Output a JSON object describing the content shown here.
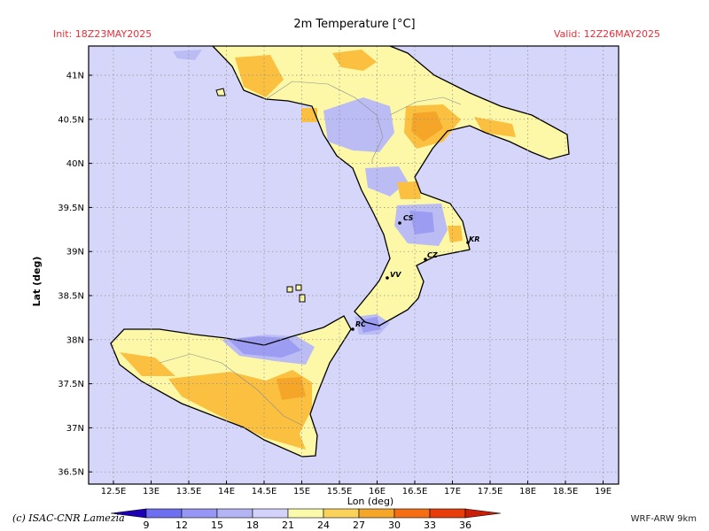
{
  "header": {
    "title": "2m Temperature [°C]",
    "init": "Init: 18Z23MAY2025",
    "valid": "Valid: 12Z26MAY2025"
  },
  "footer": {
    "credit": "(c) ISAC-CNR Lamezia",
    "model": "WRF-ARW 9km"
  },
  "axes": {
    "xlabel": "Lon (deg)",
    "ylabel": "Lat (deg)",
    "lon_ticks": [
      "12.5E",
      "13E",
      "13.5E",
      "14E",
      "14.5E",
      "15E",
      "15.5E",
      "16E",
      "16.5E",
      "17E",
      "17.5E",
      "18E",
      "18.5E",
      "19E"
    ],
    "lat_ticks": [
      "41N",
      "40.5N",
      "40N",
      "39.5N",
      "39N",
      "38.5N",
      "38N",
      "37.5N",
      "37N",
      "36.5N"
    ]
  },
  "stations": [
    "CS",
    "KR",
    "CZ",
    "VV",
    "RC"
  ],
  "colorbar": {
    "labels": [
      "9",
      "12",
      "15",
      "18",
      "21",
      "24",
      "27",
      "30",
      "33",
      "36"
    ],
    "colors": [
      "#1e00b4",
      "#6e6ef0",
      "#9696f5",
      "#b4b4f5",
      "#d2d2fa",
      "#fafaaa",
      "#fad25a",
      "#f5a528",
      "#f56e14",
      "#e83c0a",
      "#c81e0a"
    ]
  },
  "map_colors": {
    "sea": "#d6d6fa",
    "cool": "#bcbcf5",
    "cold": "#9c9cf2",
    "mild": "#fcf8a8",
    "warm": "#fbc040",
    "warmer": "#f5a528"
  }
}
